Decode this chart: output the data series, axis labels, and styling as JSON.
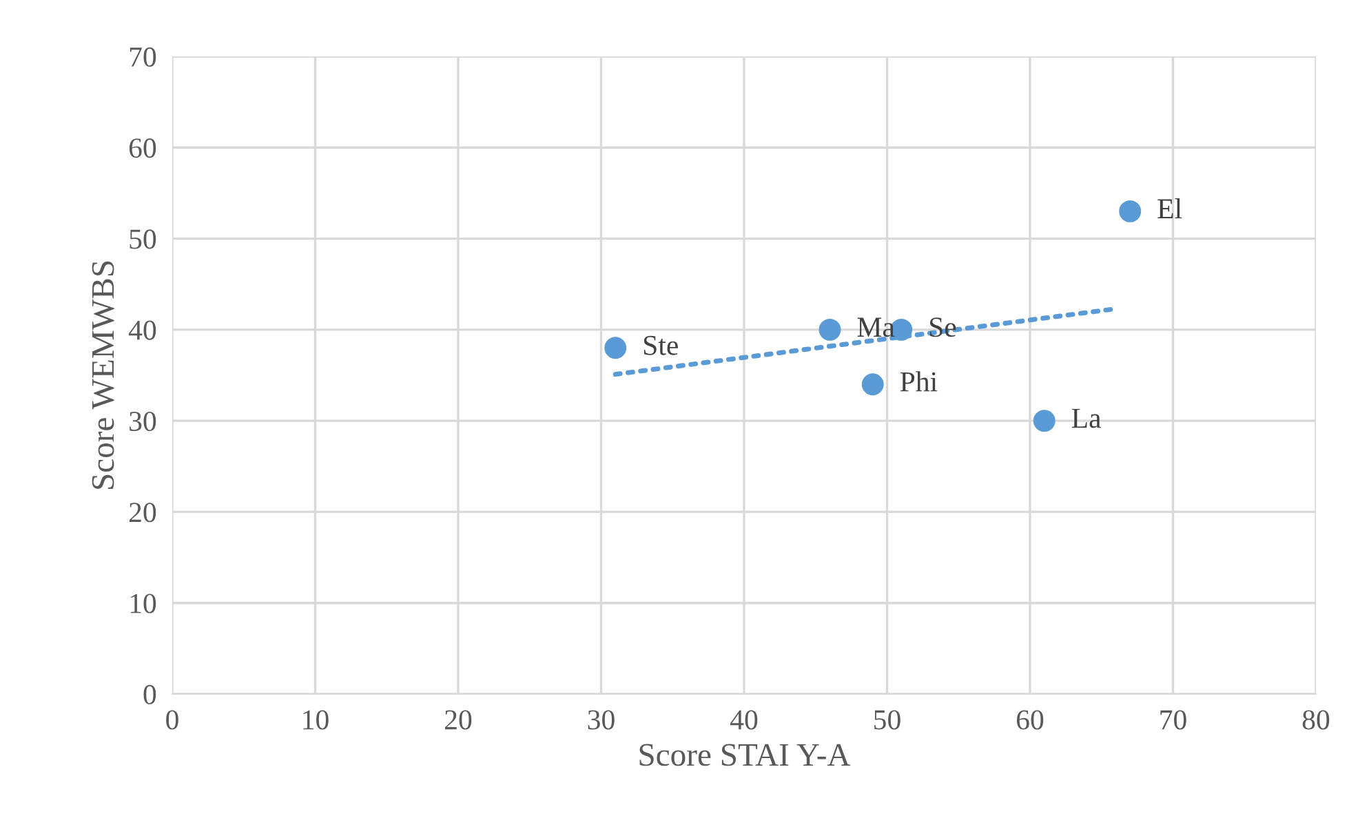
{
  "chart_data": {
    "type": "scatter",
    "xlabel": "Score STAI Y-A",
    "ylabel": "Score WEMWBS",
    "xlim": [
      0,
      80
    ],
    "ylim": [
      0,
      70
    ],
    "xticks": [
      0,
      10,
      20,
      30,
      40,
      50,
      60,
      70,
      80
    ],
    "yticks": [
      0,
      10,
      20,
      30,
      40,
      50,
      60,
      70
    ],
    "grid": true,
    "marker": "circle",
    "series": [
      {
        "color": "#5b9bd5",
        "x": [
          31,
          46,
          51,
          49,
          61,
          67
        ],
        "values": [
          38,
          40,
          40,
          34,
          30,
          53
        ]
      },
      {
        "type": "line",
        "color": "#5b9bd5",
        "line_style": "dotted",
        "marker": "none",
        "x": [
          31,
          66
        ],
        "values": [
          35.1,
          42.3
        ]
      }
    ],
    "annotations": [
      {
        "text": "Ste",
        "x": 31,
        "y": 38
      },
      {
        "text": "Ma",
        "x": 46,
        "y": 40
      },
      {
        "text": "Se",
        "x": 51,
        "y": 40
      },
      {
        "text": "Phi",
        "x": 49,
        "y": 34
      },
      {
        "text": "La",
        "x": 61,
        "y": 30
      },
      {
        "text": "El",
        "x": 67,
        "y": 53
      }
    ]
  }
}
